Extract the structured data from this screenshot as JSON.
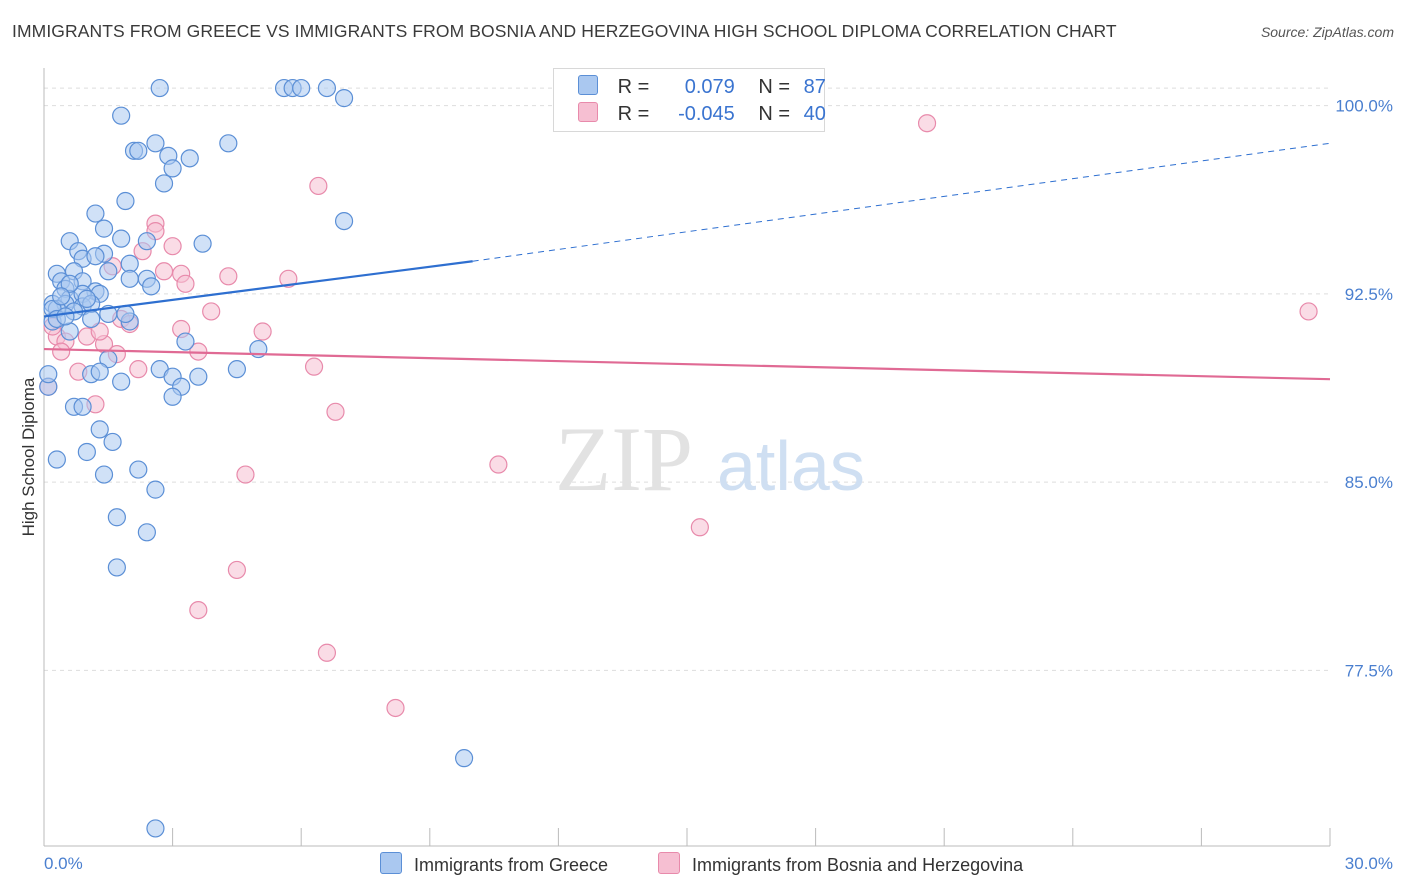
{
  "title": "IMMIGRANTS FROM GREECE VS IMMIGRANTS FROM BOSNIA AND HERZEGOVINA HIGH SCHOOL DIPLOMA CORRELATION CHART",
  "source": "Source: ZipAtlas.com",
  "watermark": {
    "zip": "ZIP",
    "atlas": "atlas"
  },
  "legend": {
    "r_label": "R =",
    "n_label": "N =",
    "rows": [
      {
        "r": "0.079",
        "n": "87"
      },
      {
        "r": "-0.045",
        "n": "40"
      }
    ]
  },
  "bottom_legend": [
    "Immigrants from Greece",
    "Immigrants from Bosnia and Herzegovina"
  ],
  "colors": {
    "blue_fill": "#aac8f0",
    "blue_stroke": "#5b8fd6",
    "blue_line": "#2e6fd0",
    "pink_fill": "#f6bfd2",
    "pink_stroke": "#e88aab",
    "pink_line": "#e06a94",
    "tick_text": "#4a7fcf",
    "grid": "#dddddd"
  },
  "chart_data": {
    "type": "scatter",
    "title": "IMMIGRANTS FROM GREECE VS IMMIGRANTS FROM BOSNIA AND HERZEGOVINA HIGH SCHOOL DIPLOMA CORRELATION CHART",
    "xlabel": "",
    "ylabel": "High School Diploma",
    "xlim": [
      0,
      30
    ],
    "ylim": [
      70.5,
      101.5
    ],
    "x_tick_labels": [
      {
        "value": 0,
        "label": "0.0%"
      },
      {
        "value": 30,
        "label": "30.0%"
      }
    ],
    "y_tick_labels": [
      {
        "value": 100.0,
        "label": "100.0%"
      },
      {
        "value": 92.5,
        "label": "92.5%"
      },
      {
        "value": 85.0,
        "label": "85.0%"
      },
      {
        "value": 77.5,
        "label": "77.5%"
      }
    ],
    "series": [
      {
        "name": "Immigrants from Greece",
        "color": "blue",
        "trend": {
          "x": [
            0,
            10.0
          ],
          "y": [
            91.6,
            93.8
          ],
          "dashed_to": [
            30,
            98.5
          ]
        },
        "points": [
          [
            2.7,
            100.7
          ],
          [
            5.6,
            100.7
          ],
          [
            5.8,
            100.7
          ],
          [
            6.0,
            100.7
          ],
          [
            6.6,
            100.7
          ],
          [
            7.0,
            100.3
          ],
          [
            1.8,
            99.6
          ],
          [
            2.6,
            98.5
          ],
          [
            2.1,
            98.2
          ],
          [
            2.2,
            98.2
          ],
          [
            2.9,
            98.0
          ],
          [
            3.0,
            97.5
          ],
          [
            3.4,
            97.9
          ],
          [
            4.3,
            98.5
          ],
          [
            2.8,
            96.9
          ],
          [
            1.9,
            96.2
          ],
          [
            1.2,
            95.7
          ],
          [
            7.0,
            95.4
          ],
          [
            1.4,
            95.1
          ],
          [
            1.8,
            94.7
          ],
          [
            2.4,
            94.6
          ],
          [
            3.7,
            94.5
          ],
          [
            0.6,
            94.6
          ],
          [
            0.8,
            94.2
          ],
          [
            1.4,
            94.1
          ],
          [
            0.9,
            93.9
          ],
          [
            2.0,
            93.7
          ],
          [
            0.7,
            93.4
          ],
          [
            1.5,
            93.4
          ],
          [
            2.0,
            93.1
          ],
          [
            0.3,
            93.3
          ],
          [
            0.4,
            93.0
          ],
          [
            0.9,
            93.0
          ],
          [
            2.4,
            93.1
          ],
          [
            2.5,
            92.8
          ],
          [
            0.5,
            92.7
          ],
          [
            1.2,
            92.6
          ],
          [
            0.6,
            92.3
          ],
          [
            0.9,
            92.5
          ],
          [
            1.3,
            92.5
          ],
          [
            0.2,
            92.1
          ],
          [
            0.5,
            92.1
          ],
          [
            0.9,
            92.0
          ],
          [
            1.1,
            92.1
          ],
          [
            0.3,
            91.9
          ],
          [
            0.7,
            91.8
          ],
          [
            1.5,
            91.7
          ],
          [
            1.1,
            91.5
          ],
          [
            0.2,
            91.4
          ],
          [
            2.0,
            91.4
          ],
          [
            1.9,
            91.7
          ],
          [
            0.6,
            91.0
          ],
          [
            3.3,
            90.6
          ],
          [
            5.0,
            90.3
          ],
          [
            1.5,
            89.9
          ],
          [
            4.5,
            89.5
          ],
          [
            2.7,
            89.5
          ],
          [
            1.1,
            89.3
          ],
          [
            1.3,
            89.4
          ],
          [
            3.0,
            89.2
          ],
          [
            3.6,
            89.2
          ],
          [
            1.8,
            89.0
          ],
          [
            3.2,
            88.8
          ],
          [
            0.1,
            88.8
          ],
          [
            3.0,
            88.4
          ],
          [
            0.7,
            88.0
          ],
          [
            0.9,
            88.0
          ],
          [
            1.3,
            87.1
          ],
          [
            1.6,
            86.6
          ],
          [
            1.0,
            86.2
          ],
          [
            0.3,
            85.9
          ],
          [
            2.2,
            85.5
          ],
          [
            1.4,
            85.3
          ],
          [
            2.6,
            84.7
          ],
          [
            1.7,
            83.6
          ],
          [
            2.4,
            83.0
          ],
          [
            1.7,
            81.6
          ],
          [
            9.8,
            74.0
          ],
          [
            2.6,
            71.2
          ],
          [
            0.1,
            89.3
          ],
          [
            0.2,
            91.9
          ],
          [
            0.6,
            92.9
          ],
          [
            1.0,
            92.3
          ],
          [
            0.4,
            92.4
          ],
          [
            0.3,
            91.5
          ],
          [
            0.5,
            91.6
          ],
          [
            1.2,
            94.0
          ]
        ]
      },
      {
        "name": "Immigrants from Bosnia and Herzegovina",
        "color": "pink",
        "trend": {
          "x": [
            0,
            30
          ],
          "y": [
            90.3,
            89.1
          ]
        },
        "points": [
          [
            20.6,
            99.3
          ],
          [
            6.4,
            96.8
          ],
          [
            2.6,
            95.3
          ],
          [
            2.6,
            95.0
          ],
          [
            3.0,
            94.4
          ],
          [
            2.3,
            94.2
          ],
          [
            1.6,
            93.6
          ],
          [
            2.8,
            93.4
          ],
          [
            3.2,
            93.3
          ],
          [
            4.3,
            93.2
          ],
          [
            5.7,
            93.1
          ],
          [
            3.3,
            92.9
          ],
          [
            3.9,
            91.8
          ],
          [
            1.8,
            91.5
          ],
          [
            2.0,
            91.3
          ],
          [
            3.2,
            91.1
          ],
          [
            5.1,
            91.0
          ],
          [
            0.3,
            90.8
          ],
          [
            1.0,
            90.8
          ],
          [
            1.4,
            90.5
          ],
          [
            0.5,
            90.6
          ],
          [
            1.7,
            90.1
          ],
          [
            3.6,
            90.2
          ],
          [
            6.3,
            89.6
          ],
          [
            0.8,
            89.4
          ],
          [
            2.2,
            89.5
          ],
          [
            1.2,
            88.1
          ],
          [
            6.8,
            87.8
          ],
          [
            10.6,
            85.7
          ],
          [
            4.7,
            85.3
          ],
          [
            15.3,
            83.2
          ],
          [
            4.5,
            81.5
          ],
          [
            3.6,
            79.9
          ],
          [
            6.6,
            78.2
          ],
          [
            8.2,
            76.0
          ],
          [
            29.5,
            91.8
          ],
          [
            0.1,
            88.8
          ],
          [
            0.2,
            91.2
          ],
          [
            0.4,
            90.2
          ],
          [
            1.3,
            91.0
          ]
        ]
      }
    ]
  }
}
